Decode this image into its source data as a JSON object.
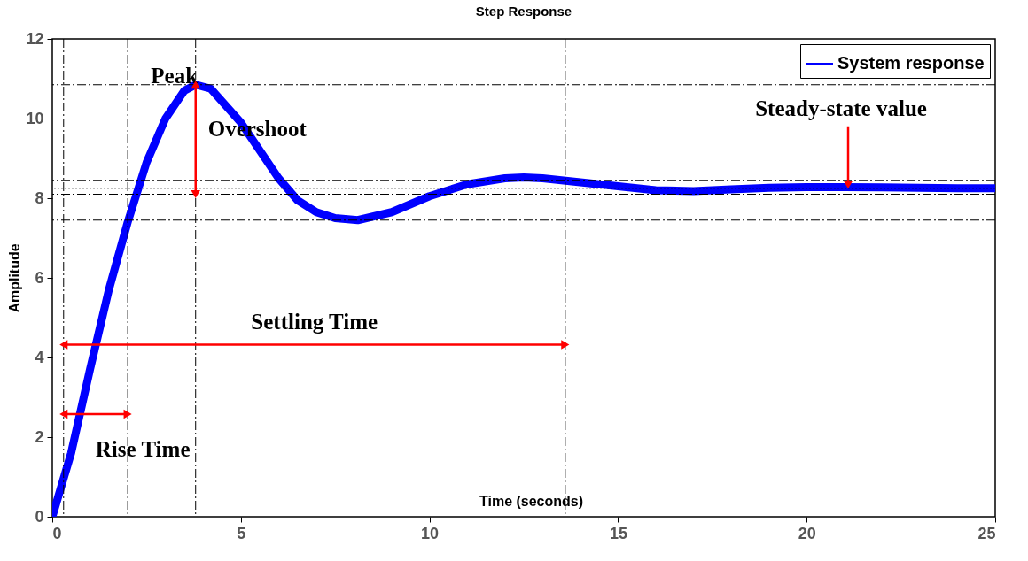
{
  "chart_data": {
    "type": "line",
    "title": "Step Response",
    "xlabel": "Time (seconds)",
    "ylabel": "Amplitude",
    "x": [
      0,
      0.5,
      1,
      1.5,
      2,
      2.5,
      3,
      3.5,
      3.8,
      4.2,
      5,
      5.5,
      6,
      6.5,
      7,
      7.5,
      8.1,
      9,
      10,
      11,
      12,
      12.5,
      13,
      14,
      15,
      16,
      17,
      18,
      19,
      20,
      21,
      22,
      23,
      24,
      25
    ],
    "series": [
      {
        "name": "System response",
        "color": "#0000ff",
        "values": [
          0,
          1.6,
          3.7,
          5.7,
          7.4,
          8.9,
          10.0,
          10.7,
          10.85,
          10.75,
          9.9,
          9.2,
          8.5,
          7.95,
          7.65,
          7.5,
          7.45,
          7.65,
          8.05,
          8.35,
          8.5,
          8.52,
          8.5,
          8.4,
          8.3,
          8.2,
          8.18,
          8.22,
          8.26,
          8.28,
          8.28,
          8.27,
          8.26,
          8.25,
          8.25
        ]
      }
    ],
    "xlim": [
      0,
      25
    ],
    "xticks": [
      0,
      5,
      10,
      15,
      20,
      25
    ],
    "ylim": [
      0,
      12
    ],
    "yticks": [
      0,
      2,
      4,
      6,
      8,
      10,
      12
    ],
    "grid": false,
    "legend": "top right",
    "ref_lines": [
      {
        "axis": "y",
        "value": 10.85,
        "line_style": "dashed"
      },
      {
        "axis": "y",
        "value": 8.45,
        "line_style": "dashed"
      },
      {
        "axis": "y",
        "value": 8.25,
        "line_style": "dotted"
      },
      {
        "axis": "y",
        "value": 8.1,
        "line_style": "dashed"
      },
      {
        "axis": "y",
        "value": 7.45,
        "line_style": "dashed"
      },
      {
        "axis": "x",
        "value": 0.3,
        "line_style": "dashed"
      },
      {
        "axis": "x",
        "value": 2.0,
        "line_style": "dashed"
      },
      {
        "axis": "x",
        "value": 3.8,
        "line_style": "dashed"
      },
      {
        "axis": "x",
        "value": 13.6,
        "line_style": "dashed"
      }
    ],
    "annotations": [
      {
        "text": "Peak",
        "x": 3.8,
        "y": 10.85
      },
      "Overshoot",
      "Settling Time",
      "Rise Time",
      {
        "text": "Steady-state value",
        "x": 21.1,
        "y": 8.25
      }
    ]
  }
}
